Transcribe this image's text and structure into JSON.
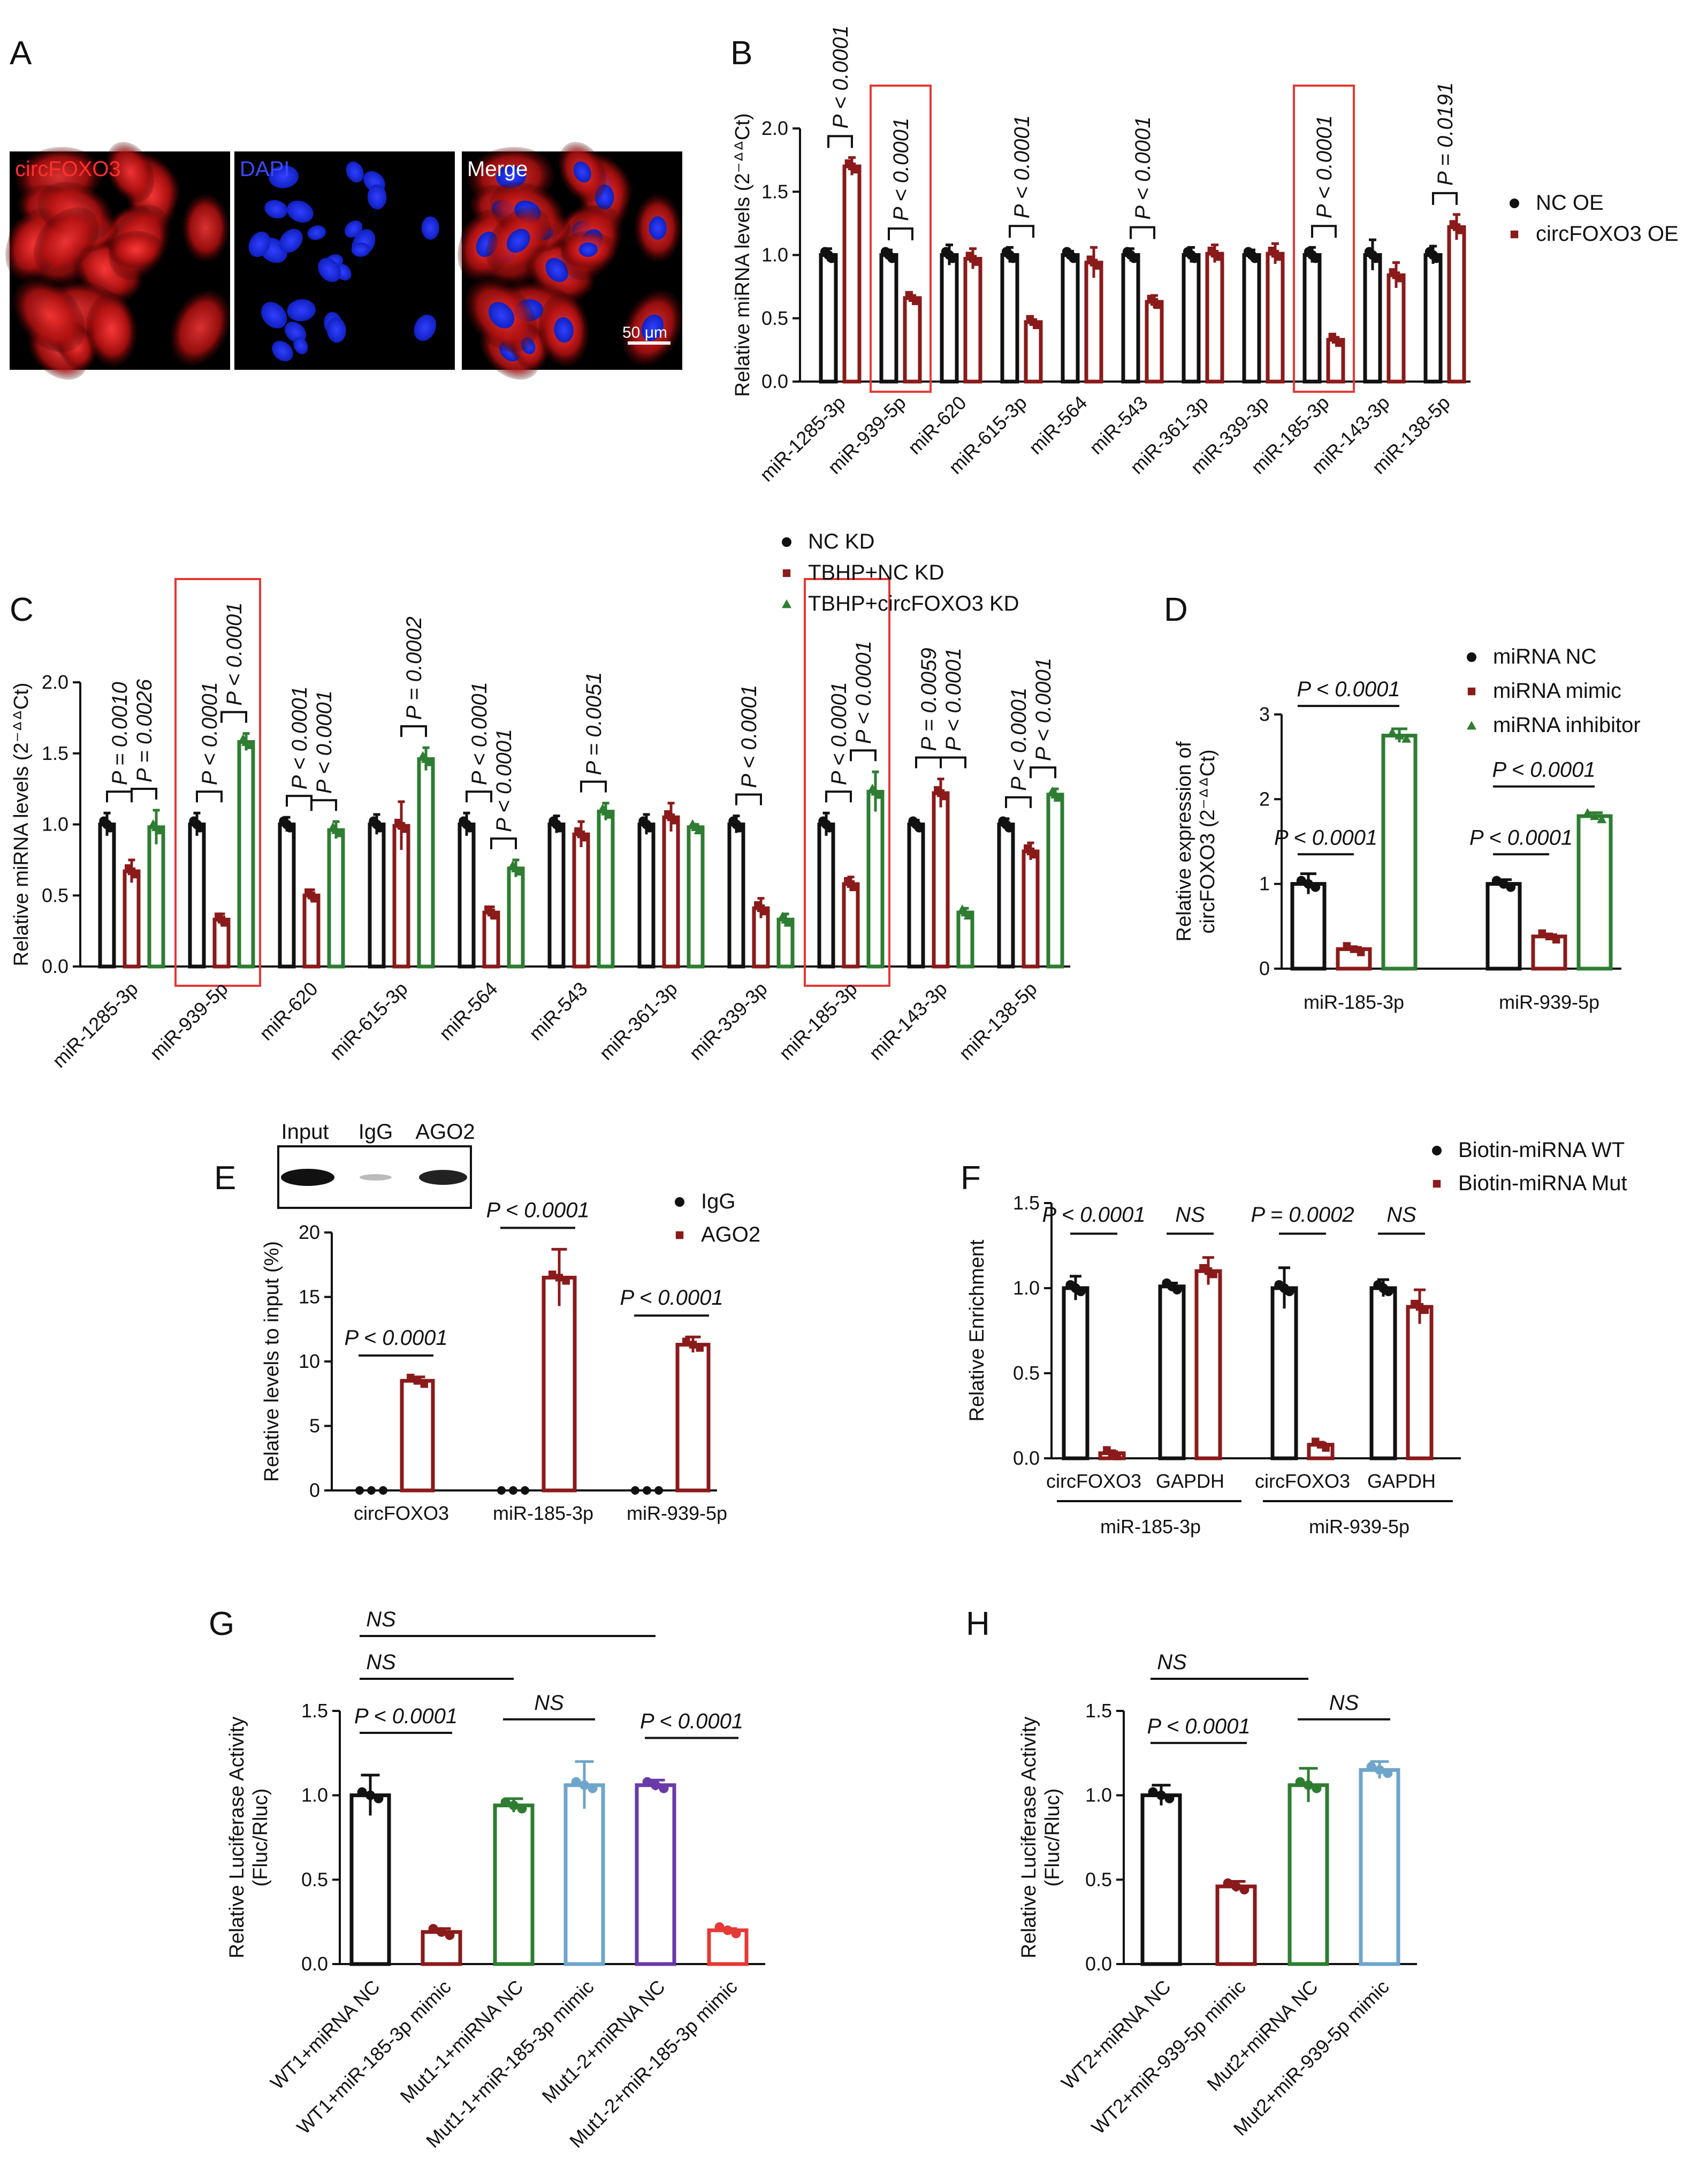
{
  "colors": {
    "black": "#111111",
    "red": "#8b1a1a",
    "green": "#2e7d32",
    "blue": "#6fa5cb",
    "purple": "#6a3aa8",
    "brightred": "#e53935",
    "box": "#e53935"
  },
  "panelA": {
    "letter": "A",
    "images": [
      {
        "label": "circFOXO3",
        "label_color": "#ff3030",
        "kind": "red"
      },
      {
        "label": "DAPI",
        "label_color": "#3a4bff",
        "kind": "blue"
      },
      {
        "label": "Merge",
        "label_color": "#ffffff",
        "kind": "merge"
      }
    ],
    "scale_bar": "50 μm"
  },
  "chart_data": [
    {
      "panel": "B",
      "type": "bar",
      "ylabel": "Relative miRNA levels (2⁻ᐞᐞCt)",
      "ylim": [
        0,
        2.0
      ],
      "yticks": [
        "0.0",
        "0.5",
        "1.0",
        "1.5",
        "2.0"
      ],
      "categories": [
        "miR-1285-3p",
        "miR-939-5p",
        "miR-620",
        "miR-615-3p",
        "miR-564",
        "miR-543",
        "miR-361-3p",
        "miR-339-3p",
        "miR-185-3p",
        "miR-143-3p",
        "miR-138-5p"
      ],
      "series": [
        {
          "name": "NC OE",
          "color": "#111111",
          "marker": "circle",
          "values": [
            1.0,
            1.0,
            1.0,
            1.0,
            1.0,
            1.0,
            1.0,
            1.0,
            1.0,
            1.0,
            1.0
          ],
          "err": [
            0.05,
            0.04,
            0.08,
            0.06,
            0.03,
            0.05,
            0.06,
            0.04,
            0.06,
            0.12,
            0.07
          ]
        },
        {
          "name": "circFOXO3 OE",
          "color": "#8b1a1a",
          "marker": "square",
          "values": [
            1.7,
            0.66,
            0.97,
            0.47,
            0.94,
            0.63,
            1.01,
            1.01,
            0.33,
            0.84,
            1.22
          ],
          "err": [
            0.07,
            0.01,
            0.08,
            0.01,
            0.12,
            0.05,
            0.07,
            0.08,
            0.01,
            0.1,
            0.1
          ]
        }
      ],
      "comparisons": [
        {
          "cat": 0,
          "text": "P < 0.0001"
        },
        {
          "cat": 1,
          "text": "P < 0.0001"
        },
        {
          "cat": 3,
          "text": "P < 0.0001"
        },
        {
          "cat": 5,
          "text": "P < 0.0001"
        },
        {
          "cat": 8,
          "text": "P < 0.0001"
        },
        {
          "cat": 10,
          "text": "P = 0.0191"
        }
      ],
      "highlight": [
        "miR-939-5p",
        "miR-185-3p"
      ],
      "legend_position": "right"
    },
    {
      "panel": "C",
      "type": "bar",
      "ylabel": "Relative miRNA levels (2⁻ᐞᐞCt)",
      "ylim": [
        0,
        2.0
      ],
      "yticks": [
        "0.0",
        "0.5",
        "1.0",
        "1.5",
        "2.0"
      ],
      "categories": [
        "miR-1285-3p",
        "miR-939-5p",
        "miR-620",
        "miR-615-3p",
        "miR-564",
        "miR-543",
        "miR-361-3p",
        "miR-339-3p",
        "miR-185-3p",
        "miR-143-3p",
        "miR-138-5p"
      ],
      "series": [
        {
          "name": "NC KD",
          "color": "#111111",
          "marker": "circle",
          "values": [
            1.0,
            1.0,
            1.0,
            1.0,
            1.0,
            1.0,
            1.0,
            1.0,
            1.0,
            1.0,
            1.0
          ],
          "err": [
            0.08,
            0.08,
            0.05,
            0.07,
            0.08,
            0.06,
            0.07,
            0.06,
            0.08,
            0.03,
            0.04
          ]
        },
        {
          "name": "TBHP+NC KD",
          "color": "#8b1a1a",
          "marker": "square",
          "values": [
            0.67,
            0.33,
            0.5,
            0.99,
            0.38,
            0.93,
            1.05,
            0.41,
            0.58,
            1.22,
            0.81
          ],
          "err": [
            0.08,
            0.04,
            0.04,
            0.17,
            0.04,
            0.09,
            0.1,
            0.07,
            0.05,
            0.1,
            0.06
          ]
        },
        {
          "name": "TBHP+circFOXO3 KD",
          "color": "#2e7d32",
          "marker": "triangle",
          "values": [
            0.98,
            1.58,
            0.96,
            1.46,
            0.69,
            1.09,
            0.98,
            0.33,
            1.23,
            0.38,
            1.21
          ],
          "err": [
            0.12,
            0.06,
            0.06,
            0.08,
            0.06,
            0.06,
            0.02,
            0.04,
            0.14,
            0.03,
            0.04
          ]
        }
      ],
      "comparisons": [
        {
          "cat": 0,
          "a": 0,
          "b": 1,
          "text": "P = 0.0010"
        },
        {
          "cat": 0,
          "a": 1,
          "b": 2,
          "text": "P = 0.0026"
        },
        {
          "cat": 1,
          "a": 0,
          "b": 1,
          "text": "P < 0.0001"
        },
        {
          "cat": 1,
          "a": 1,
          "b": 2,
          "text": "P < 0.0001"
        },
        {
          "cat": 2,
          "a": 0,
          "b": 1,
          "text": "P < 0.0001"
        },
        {
          "cat": 2,
          "a": 1,
          "b": 2,
          "text": "P < 0.0001"
        },
        {
          "cat": 3,
          "a": 1,
          "b": 2,
          "text": "P = 0.0002"
        },
        {
          "cat": 4,
          "a": 0,
          "b": 1,
          "text": "P < 0.0001"
        },
        {
          "cat": 4,
          "a": 1,
          "b": 2,
          "text": "P < 0.0001"
        },
        {
          "cat": 5,
          "a": 1,
          "b": 2,
          "text": "P = 0.0051"
        },
        {
          "cat": 7,
          "a": 0,
          "b": 1,
          "text": "P < 0.0001"
        },
        {
          "cat": 8,
          "a": 0,
          "b": 1,
          "text": "P < 0.0001"
        },
        {
          "cat": 8,
          "a": 1,
          "b": 2,
          "text": "P < 0.0001"
        },
        {
          "cat": 9,
          "a": 0,
          "b": 1,
          "text": "P = 0.0059"
        },
        {
          "cat": 9,
          "a": 1,
          "b": 2,
          "text": "P < 0.0001"
        },
        {
          "cat": 10,
          "a": 0,
          "b": 1,
          "text": "P < 0.0001"
        },
        {
          "cat": 10,
          "a": 1,
          "b": 2,
          "text": "P < 0.0001"
        }
      ],
      "highlight": [
        "miR-939-5p",
        "miR-185-3p"
      ],
      "legend_position": "top"
    },
    {
      "panel": "D",
      "type": "bar",
      "ylabel": [
        "Relative expression of",
        "circFOXO3 (2⁻ᐞᐞCt)"
      ],
      "ylim": [
        0,
        3
      ],
      "yticks": [
        "0",
        "1",
        "2",
        "3"
      ],
      "categories": [
        "miR-185-3p",
        "miR-939-5p"
      ],
      "series": [
        {
          "name": "miRNA NC",
          "color": "#111111",
          "marker": "circle",
          "values": [
            1.0,
            1.0
          ],
          "err": [
            0.12,
            0.05
          ]
        },
        {
          "name": "miRNA mimic",
          "color": "#8b1a1a",
          "marker": "square",
          "values": [
            0.23,
            0.38
          ],
          "err": [
            0.02,
            0.02
          ]
        },
        {
          "name": "miRNA inhibitor",
          "color": "#2e7d32",
          "marker": "triangle",
          "values": [
            2.75,
            1.8
          ],
          "err": [
            0.08,
            0.04
          ]
        }
      ],
      "comparisons": [
        {
          "cat": 0,
          "a": 0,
          "b": 1,
          "text": "P < 0.0001"
        },
        {
          "cat": 0,
          "a": 0,
          "b": 2,
          "text": "P < 0.0001"
        },
        {
          "cat": 1,
          "a": 0,
          "b": 1,
          "text": "P < 0.0001"
        },
        {
          "cat": 1,
          "a": 0,
          "b": 2,
          "text": "P < 0.0001"
        }
      ],
      "legend_position": "top-right"
    },
    {
      "panel": "E",
      "type": "bar",
      "ylabel": "Relative levels to input (%)",
      "ylim": [
        0,
        20
      ],
      "yticks": [
        "0",
        "5",
        "10",
        "15",
        "20"
      ],
      "categories": [
        "circFOXO3",
        "miR-185-3p",
        "miR-939-5p"
      ],
      "series": [
        {
          "name": "IgG",
          "color": "#111111",
          "marker": "circle",
          "values": [
            0.01,
            0.01,
            0.01
          ],
          "err": [
            0,
            0,
            0
          ]
        },
        {
          "name": "AGO2",
          "color": "#8b1a1a",
          "marker": "square",
          "values": [
            8.5,
            16.5,
            11.3
          ],
          "err": [
            0.3,
            2.2,
            0.6
          ]
        }
      ],
      "comparisons": [
        {
          "cat": 0,
          "text": "P < 0.0001"
        },
        {
          "cat": 1,
          "text": "P < 0.0001"
        },
        {
          "cat": 2,
          "text": "P < 0.0001"
        }
      ],
      "blot_labels": [
        "Input",
        "IgG",
        "AGO2"
      ],
      "legend_position": "top-right"
    },
    {
      "panel": "F",
      "type": "bar",
      "ylabel": "Relative Enrichment",
      "ylim": [
        0,
        1.5
      ],
      "yticks": [
        "0.0",
        "0.5",
        "1.0",
        "1.5"
      ],
      "categories": [
        "circFOXO3",
        "GAPDH",
        "circFOXO3",
        "GAPDH"
      ],
      "groups": [
        "miR-185-3p",
        "miR-939-5p"
      ],
      "series": [
        {
          "name": "Biotin-miRNA WT",
          "color": "#111111",
          "marker": "circle",
          "values": [
            1.0,
            1.01,
            1.0,
            1.0
          ],
          "err": [
            0.07,
            0.02,
            0.12,
            0.05
          ]
        },
        {
          "name": "Biotin-miRNA Mut",
          "color": "#8b1a1a",
          "marker": "square",
          "values": [
            0.03,
            1.1,
            0.08,
            0.89
          ],
          "err": [
            0.01,
            0.08,
            0.01,
            0.1
          ]
        }
      ],
      "comparisons": [
        {
          "cat": 0,
          "text": "P < 0.0001"
        },
        {
          "cat": 1,
          "text": "NS"
        },
        {
          "cat": 2,
          "text": "P = 0.0002"
        },
        {
          "cat": 3,
          "text": "NS"
        }
      ],
      "legend_position": "top-right"
    },
    {
      "panel": "G",
      "type": "bar",
      "ylabel": [
        "Relative Luciferase Activity",
        "(Fluc/Rluc)"
      ],
      "ylim": [
        0,
        1.5
      ],
      "yticks": [
        "0.0",
        "0.5",
        "1.0",
        "1.5"
      ],
      "categories": [
        "WT1+miRNA NC",
        "WT1+miR-185-3p mimic",
        "Mut1-1+miRNA NC",
        "Mut1-1+miR-185-3p mimic",
        "Mut1-2+miRNA NC",
        "Mut1-2+miR-185-3p mimic"
      ],
      "values": [
        1.0,
        0.19,
        0.94,
        1.06,
        1.06,
        0.2
      ],
      "err": [
        0.12,
        0.02,
        0.04,
        0.14,
        0.03,
        0.01
      ],
      "bar_colors": [
        "#111111",
        "#8b1a1a",
        "#2e7d32",
        "#6fa5cb",
        "#6a3aa8",
        "#e53935"
      ],
      "comparisons": [
        {
          "a": 0,
          "b": 4,
          "text": "NS"
        },
        {
          "a": 0,
          "b": 2,
          "text": "NS"
        },
        {
          "a": 0,
          "b": 1,
          "text": "P < 0.0001"
        },
        {
          "a": 2,
          "b": 3,
          "text": "NS"
        },
        {
          "a": 4,
          "b": 5,
          "text": "P < 0.0001"
        }
      ]
    },
    {
      "panel": "H",
      "type": "bar",
      "ylabel": [
        "Relative Luciferase Activity",
        "(Fluc/Rluc)"
      ],
      "ylim": [
        0,
        1.5
      ],
      "yticks": [
        "0.0",
        "0.5",
        "1.0",
        "1.5"
      ],
      "categories": [
        "WT2+miRNA NC",
        "WT2+miR-939-5p mimic",
        "Mut2+miRNA NC",
        "Mut2+miR-939-5p mimic"
      ],
      "values": [
        1.0,
        0.46,
        1.06,
        1.15
      ],
      "err": [
        0.06,
        0.03,
        0.1,
        0.05
      ],
      "bar_colors": [
        "#111111",
        "#8b1a1a",
        "#2e7d32",
        "#6fa5cb"
      ],
      "comparisons": [
        {
          "a": 0,
          "b": 2,
          "text": "NS"
        },
        {
          "a": 0,
          "b": 1,
          "text": "P < 0.0001"
        },
        {
          "a": 2,
          "b": 3,
          "text": "NS"
        }
      ]
    }
  ]
}
